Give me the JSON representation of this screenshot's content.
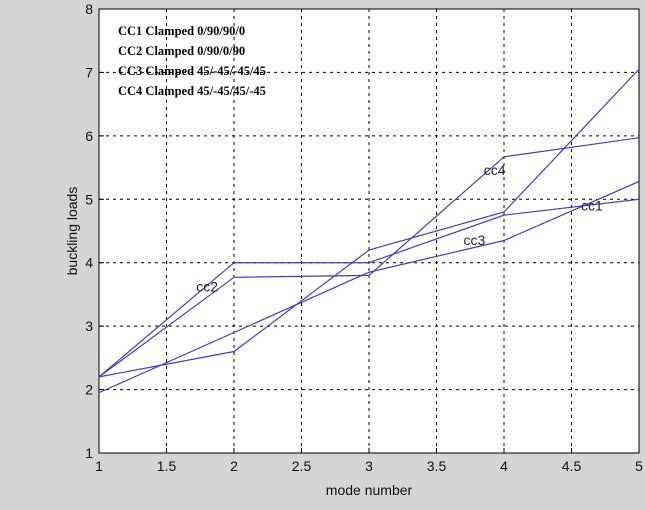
{
  "chart_data": {
    "type": "line",
    "xlabel": "mode number",
    "ylabel": "buckling loads",
    "xlim": [
      1,
      5
    ],
    "ylim": [
      1,
      8
    ],
    "x_ticks": [
      "1",
      "1.5",
      "2",
      "2.5",
      "3",
      "3.5",
      "4",
      "4.5",
      "5"
    ],
    "y_ticks": [
      "1",
      "2",
      "3",
      "4",
      "5",
      "6",
      "7",
      "8"
    ],
    "grid": true,
    "legend_position": "top-left",
    "line_color": "#3b3bdc",
    "x": [
      1,
      2,
      3,
      4,
      5
    ],
    "series": [
      {
        "name": "CC1 Clamped 0/90/90/0",
        "values": [
          2.2,
          2.6,
          4.2,
          4.8,
          7.05
        ]
      },
      {
        "name": "CC2 Clamped 0/90/0/90",
        "values": [
          2.2,
          4.0,
          4.0,
          4.75,
          5.0
        ]
      },
      {
        "name": "CC3 Clamped 45/-45/-45/45",
        "values": [
          1.95,
          2.9,
          3.85,
          4.35,
          5.28
        ]
      },
      {
        "name": "CC4 Clamped 45/-45/45/-45",
        "values": [
          2.2,
          3.77,
          3.8,
          5.67,
          5.97
        ]
      }
    ],
    "annotations": [
      {
        "text": "cc4",
        "x": 3.85,
        "y": 5.38
      },
      {
        "text": "cc1",
        "x": 4.57,
        "y": 4.82
      },
      {
        "text": "cc3",
        "x": 3.7,
        "y": 4.28
      },
      {
        "text": "cc2",
        "x": 1.72,
        "y": 3.55
      }
    ]
  }
}
